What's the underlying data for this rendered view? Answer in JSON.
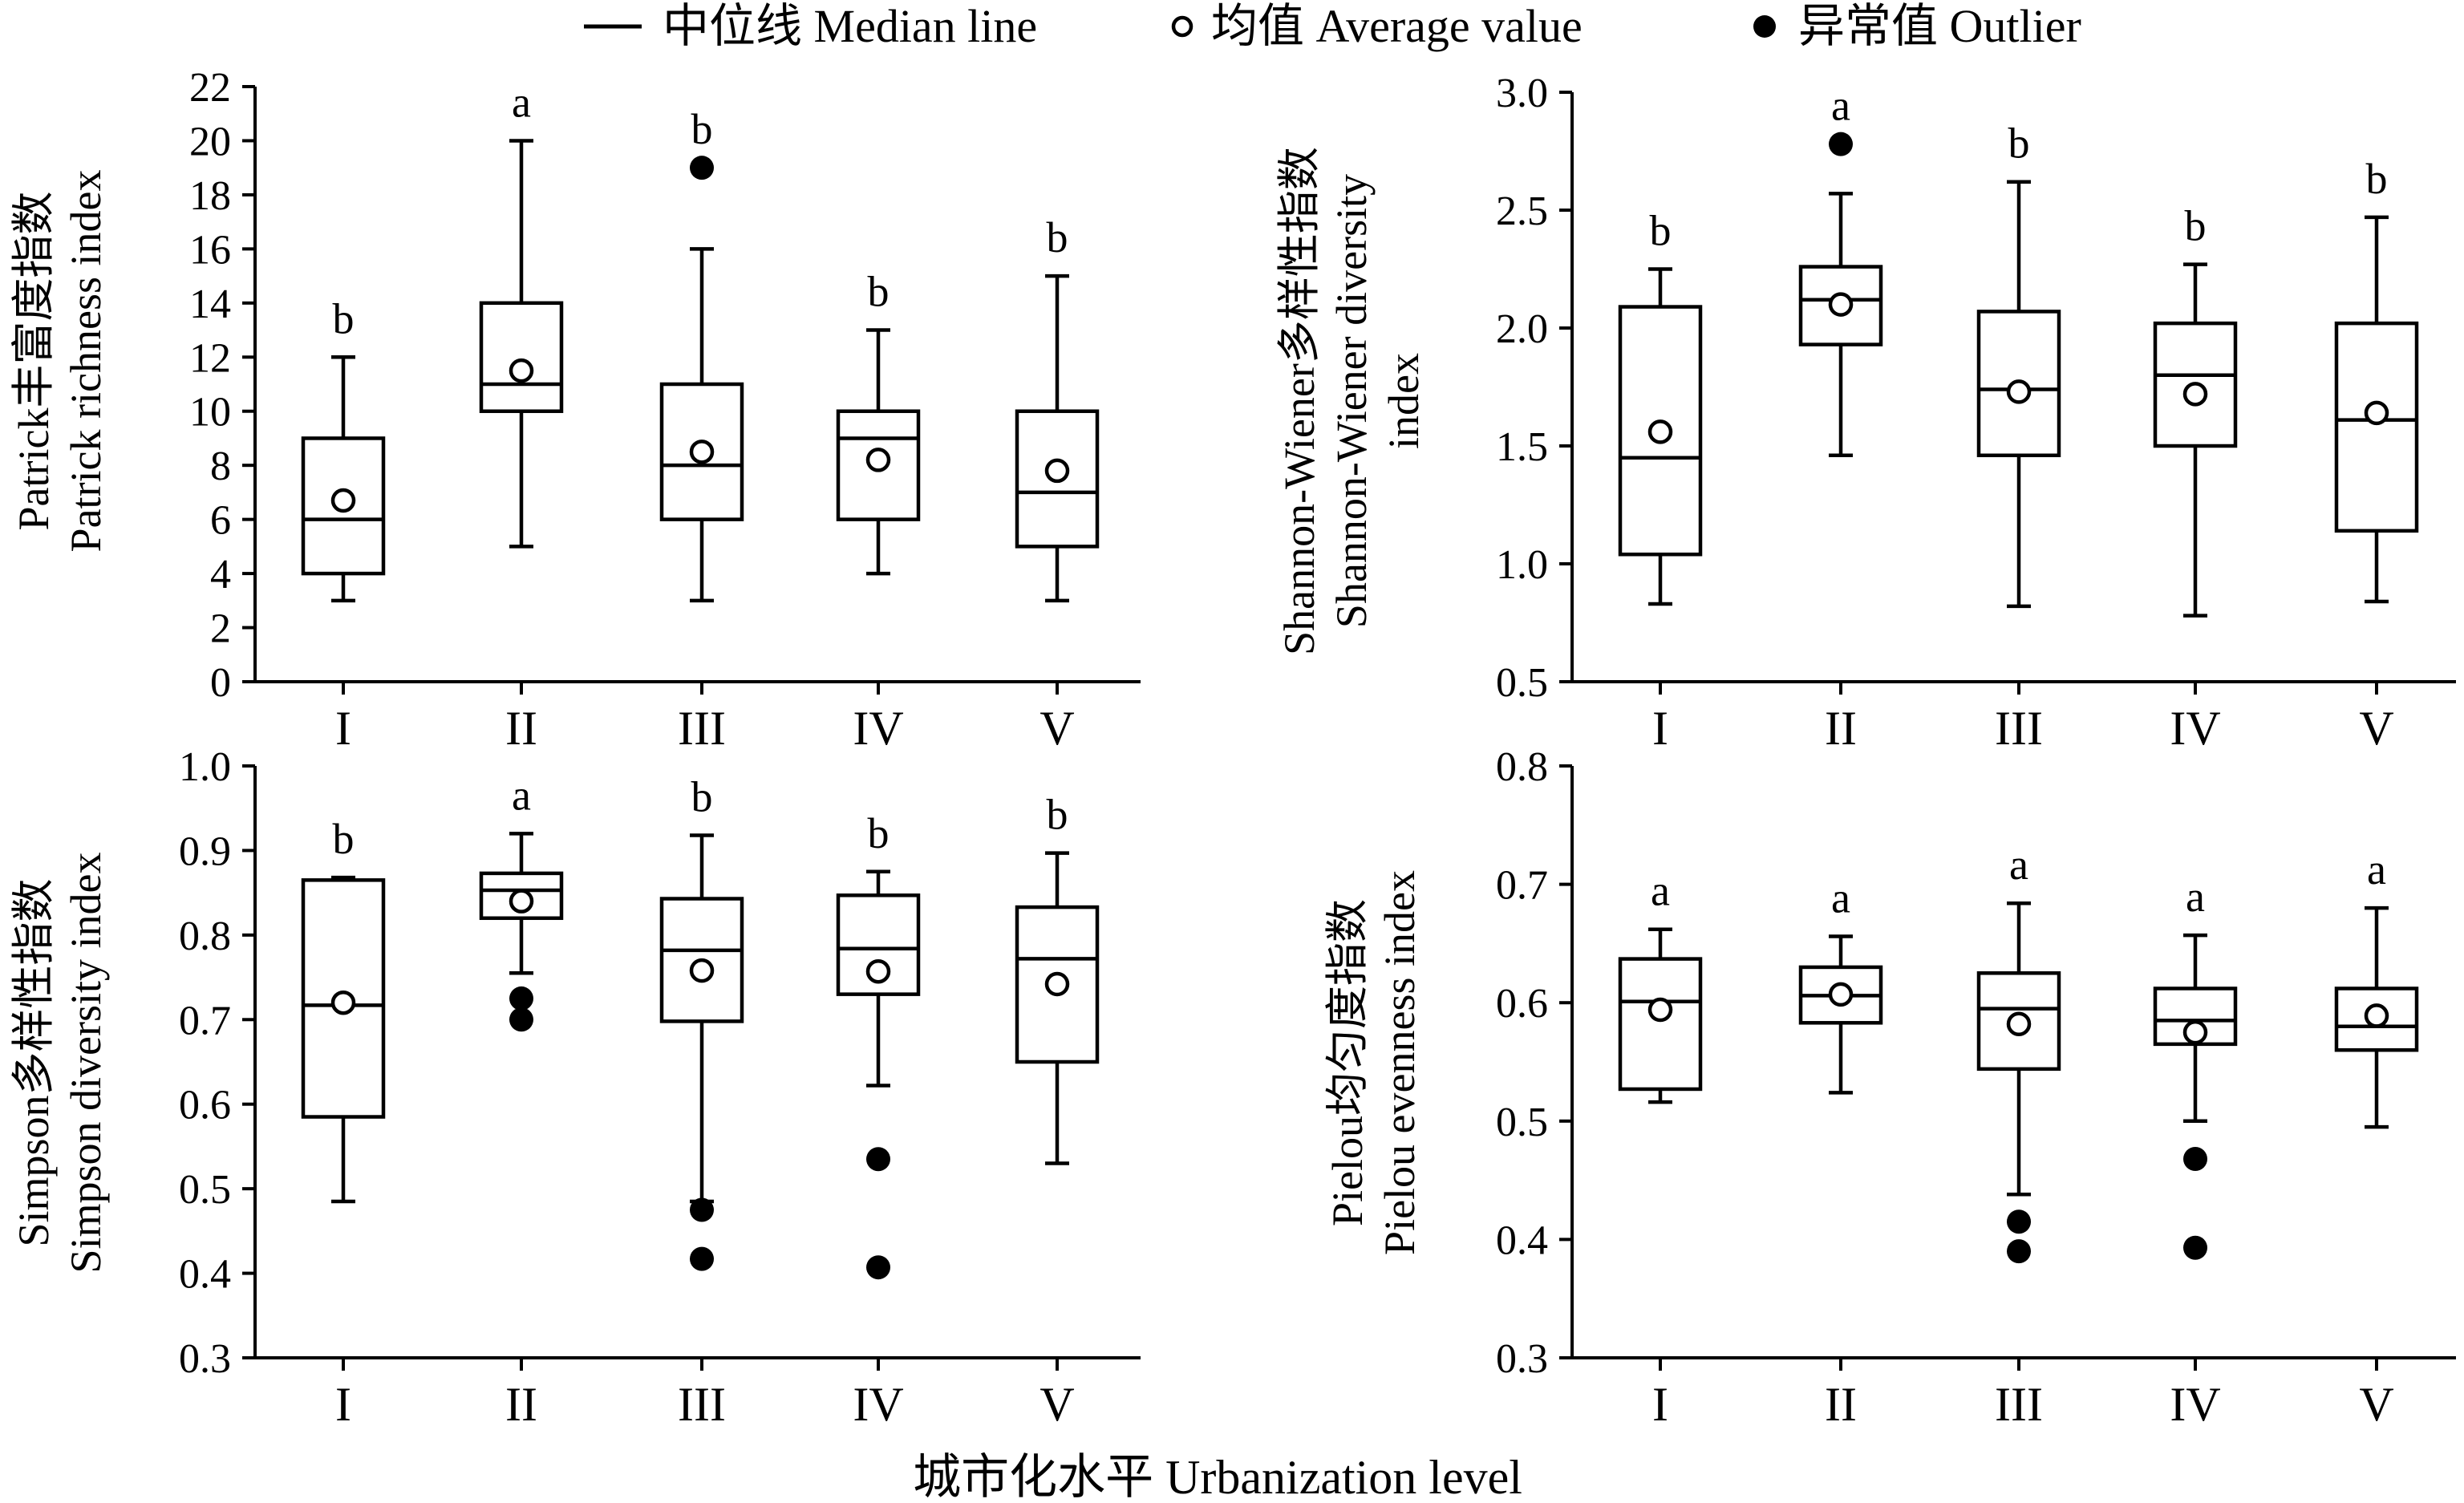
{
  "legend": {
    "median_label": "中位线 Median line",
    "mean_label": "均值 Average value",
    "outlier_label": "异常值 Outlier"
  },
  "xlabel": "城市化水平 Urbanization level",
  "categories": [
    "I",
    "II",
    "III",
    "IV",
    "V"
  ],
  "chart_data": [
    {
      "type": "box",
      "id": "patrick",
      "ylabel_cn": "Patrick丰富度指数",
      "ylabel_en": "Patrick richness index",
      "ylim": [
        0,
        22
      ],
      "yticks": [
        0,
        2,
        4,
        6,
        8,
        10,
        12,
        14,
        16,
        18,
        20,
        22
      ],
      "tick_decimals": 0,
      "categories": [
        "I",
        "II",
        "III",
        "IV",
        "V"
      ],
      "boxes": [
        {
          "whisker_low": 3,
          "q1": 4,
          "median": 6,
          "q3": 9,
          "whisker_high": 12,
          "mean": 6.7,
          "outliers": [],
          "sig": "b"
        },
        {
          "whisker_low": 5,
          "q1": 10,
          "median": 11,
          "q3": 14,
          "whisker_high": 20,
          "mean": 11.5,
          "outliers": [],
          "sig": "a"
        },
        {
          "whisker_low": 3,
          "q1": 6,
          "median": 8,
          "q3": 11,
          "whisker_high": 16,
          "mean": 8.5,
          "outliers": [
            19
          ],
          "sig": "b"
        },
        {
          "whisker_low": 4,
          "q1": 6,
          "median": 9,
          "q3": 10,
          "whisker_high": 13,
          "mean": 8.2,
          "outliers": [],
          "sig": "b"
        },
        {
          "whisker_low": 3,
          "q1": 5,
          "median": 7,
          "q3": 10,
          "whisker_high": 15,
          "mean": 7.8,
          "outliers": [],
          "sig": "b"
        }
      ]
    },
    {
      "type": "box",
      "id": "shannon",
      "ylabel_cn": "Shannon-Wiener多样性指数",
      "ylabel_en": "Shannon-Wiener diversity",
      "ylabel_en2": "index",
      "ylim": [
        0.5,
        3.0
      ],
      "yticks": [
        0.5,
        1.0,
        1.5,
        2.0,
        2.5,
        3.0
      ],
      "tick_decimals": 1,
      "categories": [
        "I",
        "II",
        "III",
        "IV",
        "V"
      ],
      "boxes": [
        {
          "whisker_low": 0.83,
          "q1": 1.04,
          "median": 1.45,
          "q3": 2.09,
          "whisker_high": 2.25,
          "mean": 1.56,
          "outliers": [],
          "sig": "b"
        },
        {
          "whisker_low": 1.46,
          "q1": 1.93,
          "median": 2.12,
          "q3": 2.26,
          "whisker_high": 2.57,
          "mean": 2.1,
          "outliers": [
            2.78
          ],
          "sig": "a"
        },
        {
          "whisker_low": 0.82,
          "q1": 1.46,
          "median": 1.74,
          "q3": 2.07,
          "whisker_high": 2.62,
          "mean": 1.73,
          "outliers": [],
          "sig": "b"
        },
        {
          "whisker_low": 0.78,
          "q1": 1.5,
          "median": 1.8,
          "q3": 2.02,
          "whisker_high": 2.27,
          "mean": 1.72,
          "outliers": [],
          "sig": "b"
        },
        {
          "whisker_low": 0.84,
          "q1": 1.14,
          "median": 1.61,
          "q3": 2.02,
          "whisker_high": 2.47,
          "mean": 1.64,
          "outliers": [],
          "sig": "b"
        }
      ]
    },
    {
      "type": "box",
      "id": "simpson",
      "ylabel_cn": "Simpson多样性指数",
      "ylabel_en": "Simpson diversity index",
      "ylim": [
        0.3,
        1.0
      ],
      "yticks": [
        0.3,
        0.4,
        0.5,
        0.6,
        0.7,
        0.8,
        0.9,
        1.0
      ],
      "tick_decimals": 1,
      "categories": [
        "I",
        "II",
        "III",
        "IV",
        "V"
      ],
      "boxes": [
        {
          "whisker_low": 0.485,
          "q1": 0.585,
          "median": 0.717,
          "q3": 0.865,
          "whisker_high": 0.868,
          "mean": 0.72,
          "outliers": [],
          "sig": "b"
        },
        {
          "whisker_low": 0.755,
          "q1": 0.82,
          "median": 0.853,
          "q3": 0.873,
          "whisker_high": 0.92,
          "mean": 0.84,
          "outliers": [
            0.725,
            0.7
          ],
          "sig": "a"
        },
        {
          "whisker_low": 0.485,
          "q1": 0.698,
          "median": 0.782,
          "q3": 0.843,
          "whisker_high": 0.918,
          "mean": 0.758,
          "outliers": [
            0.475,
            0.417
          ],
          "sig": "b"
        },
        {
          "whisker_low": 0.622,
          "q1": 0.73,
          "median": 0.784,
          "q3": 0.847,
          "whisker_high": 0.875,
          "mean": 0.757,
          "outliers": [
            0.535,
            0.407
          ],
          "sig": "b"
        },
        {
          "whisker_low": 0.53,
          "q1": 0.65,
          "median": 0.772,
          "q3": 0.833,
          "whisker_high": 0.897,
          "mean": 0.742,
          "outliers": [],
          "sig": "b"
        }
      ]
    },
    {
      "type": "box",
      "id": "pielou",
      "ylabel_cn": "Pielou均匀度指数",
      "ylabel_en": "Pielou evenness index",
      "ylim": [
        0.3,
        0.8
      ],
      "yticks": [
        0.3,
        0.4,
        0.5,
        0.6,
        0.7,
        0.8
      ],
      "tick_decimals": 1,
      "categories": [
        "I",
        "II",
        "III",
        "IV",
        "V"
      ],
      "boxes": [
        {
          "whisker_low": 0.516,
          "q1": 0.527,
          "median": 0.601,
          "q3": 0.637,
          "whisker_high": 0.662,
          "mean": 0.594,
          "outliers": [],
          "sig": "a"
        },
        {
          "whisker_low": 0.524,
          "q1": 0.583,
          "median": 0.606,
          "q3": 0.63,
          "whisker_high": 0.656,
          "mean": 0.607,
          "outliers": [],
          "sig": "a"
        },
        {
          "whisker_low": 0.438,
          "q1": 0.544,
          "median": 0.595,
          "q3": 0.625,
          "whisker_high": 0.684,
          "mean": 0.582,
          "outliers": [
            0.415,
            0.39
          ],
          "sig": "a"
        },
        {
          "whisker_low": 0.5,
          "q1": 0.565,
          "median": 0.585,
          "q3": 0.612,
          "whisker_high": 0.657,
          "mean": 0.575,
          "outliers": [
            0.468,
            0.393
          ],
          "sig": "a"
        },
        {
          "whisker_low": 0.495,
          "q1": 0.56,
          "median": 0.58,
          "q3": 0.612,
          "whisker_high": 0.68,
          "mean": 0.589,
          "outliers": [],
          "sig": "a"
        }
      ]
    }
  ]
}
